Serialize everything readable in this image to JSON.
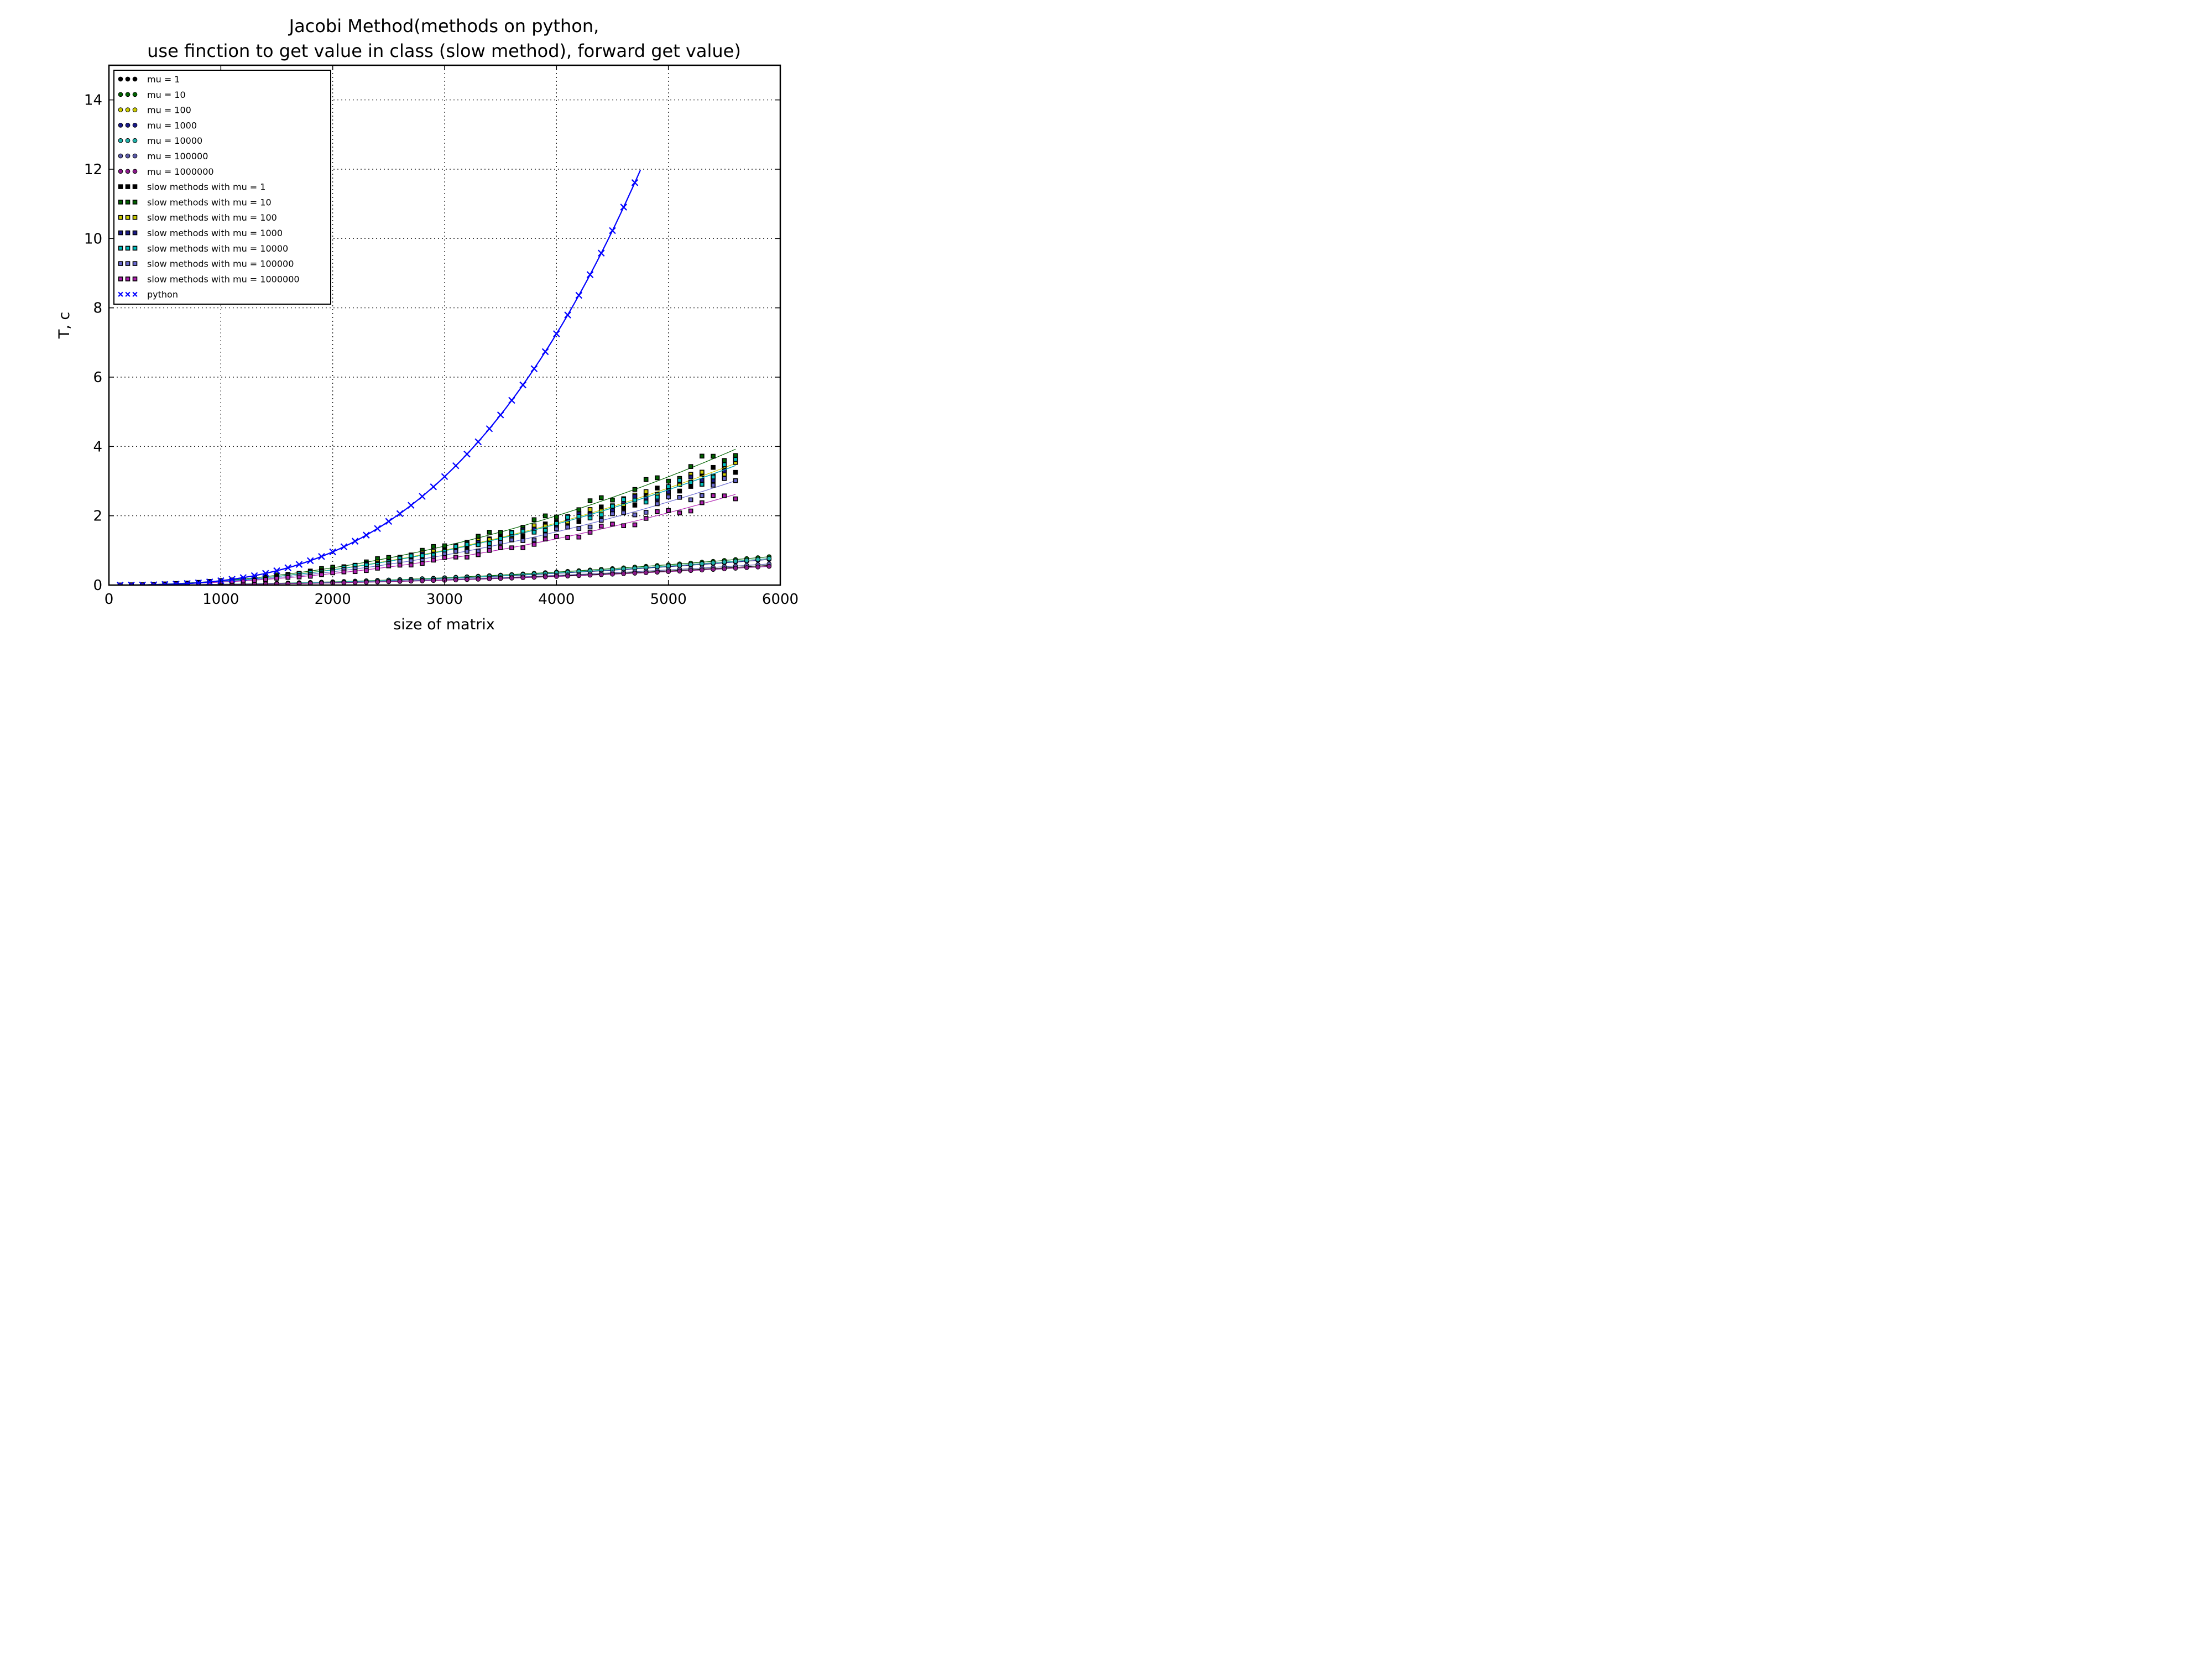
{
  "chart_data": {
    "type": "scatter",
    "title_lines": [
      "Jacobi Method(methods on python,",
      "use finction to get value in class (slow method), forward get value)"
    ],
    "xlabel": "size of matrix",
    "ylabel": "T, c",
    "xlim": [
      0,
      6000
    ],
    "ylim": [
      0,
      15
    ],
    "xticks": [
      0,
      1000,
      2000,
      3000,
      4000,
      5000,
      6000
    ],
    "yticks": [
      0,
      2,
      4,
      6,
      8,
      10,
      12,
      14
    ],
    "grid": true,
    "legend_position": "upper-left",
    "series": [
      {
        "name": "mu = 1",
        "marker": "circle",
        "color": "#000000",
        "x_range": [
          100,
          5900
        ],
        "a": 1.63e-08,
        "k": 2.0
      },
      {
        "name": "mu = 10",
        "marker": "circle",
        "color": "#006400",
        "x_range": [
          100,
          5900
        ],
        "a": 2.35e-08,
        "k": 2.0
      },
      {
        "name": "mu = 100",
        "marker": "circle",
        "color": "#cccc00",
        "x_range": [
          100,
          5900
        ],
        "a": 2.2e-08,
        "k": 2.0
      },
      {
        "name": "mu = 1000",
        "marker": "circle",
        "color": "#1a1a8a",
        "x_range": [
          100,
          5900
        ],
        "a": 2.12e-08,
        "k": 2.0
      },
      {
        "name": "mu = 10000",
        "marker": "circle",
        "color": "#20b2aa",
        "x_range": [
          100,
          5900
        ],
        "a": 2.2e-08,
        "k": 2.0
      },
      {
        "name": "mu = 100000",
        "marker": "circle",
        "color": "#5a5aa8",
        "x_range": [
          100,
          5900
        ],
        "a": 1.75e-08,
        "k": 2.0
      },
      {
        "name": "mu = 1000000",
        "marker": "circle",
        "color": "#8b1a8b",
        "x_range": [
          100,
          5900
        ],
        "a": 1.55e-08,
        "k": 2.0
      },
      {
        "name": "slow methods with mu = 1",
        "marker": "square",
        "color": "#000000",
        "x_range": [
          100,
          5600
        ],
        "a": 1.1e-07,
        "k": 2.0
      },
      {
        "name": "slow methods with mu = 10",
        "marker": "square",
        "color": "#006400",
        "x_range": [
          100,
          5600
        ],
        "a": 1.25e-07,
        "k": 2.0
      },
      {
        "name": "slow methods with mu = 100",
        "marker": "square",
        "color": "#cccc00",
        "x_range": [
          100,
          5600
        ],
        "a": 1.12e-07,
        "k": 2.0
      },
      {
        "name": "slow methods with mu = 1000",
        "marker": "square",
        "color": "#1a1a8a",
        "x_range": [
          100,
          5600
        ],
        "a": 1.1e-07,
        "k": 2.0
      },
      {
        "name": "slow methods with mu = 10000",
        "marker": "square",
        "color": "#00c0c0",
        "x_range": [
          100,
          5600
        ],
        "a": 1.1e-07,
        "k": 2.0
      },
      {
        "name": "slow methods with mu = 100000",
        "marker": "square",
        "color": "#6a6ad0",
        "x_range": [
          100,
          5600
        ],
        "a": 9.6e-08,
        "k": 2.0
      },
      {
        "name": "slow methods with mu = 1000000",
        "marker": "square",
        "color": "#b020b0",
        "x_range": [
          100,
          5600
        ],
        "a": 8.35e-08,
        "k": 2.0
      },
      {
        "name": "python",
        "marker": "x",
        "color": "#0000ff",
        "x_range": [
          100,
          4750
        ],
        "a": 2.2e-10,
        "k": 2.92
      }
    ]
  }
}
